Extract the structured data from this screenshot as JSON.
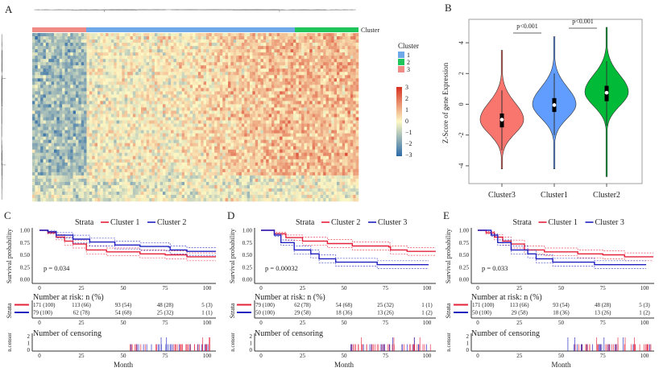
{
  "panels": {
    "A": {
      "label": "A",
      "cluster_track_label": "Cluster",
      "legend_title": "Cluster",
      "legend_items": [
        {
          "label": "1",
          "color": "#6fa8e8"
        },
        {
          "label": "2",
          "color": "#1fc45a"
        },
        {
          "label": "3",
          "color": "#f08a84"
        }
      ],
      "colorbar_ticks": [
        "3",
        "2",
        "1",
        "0",
        "−1",
        "−2",
        "−3"
      ],
      "colorbar_colors": {
        "low": "#2c6aa8",
        "mid": "#fdf8c4",
        "high": "#d7301f"
      },
      "column_order": [
        "3",
        "1",
        "2"
      ]
    },
    "B": {
      "label": "B"
    },
    "C": {
      "label": "C"
    },
    "D": {
      "label": "D"
    },
    "E": {
      "label": "E"
    }
  },
  "chart_data": [
    {
      "panel": "B",
      "type": "violin",
      "ylabel": "Z-Score of gene Expression",
      "ylim": [
        -4.5,
        5
      ],
      "yticks": [
        "-4",
        "-2",
        "0",
        "2",
        "4"
      ],
      "categories": [
        "Cluster3",
        "Cluster1",
        "Cluster2"
      ],
      "colors": [
        "#f8766d",
        "#619cff",
        "#00ba38"
      ],
      "series": [
        {
          "category": "Cluster3",
          "min": -4.2,
          "q1": -1.5,
          "median": -1.0,
          "q3": -0.6,
          "max": 3.5,
          "whisker_low": -3.0,
          "whisker_high": 0.9,
          "mode": -1.0
        },
        {
          "category": "Cluster1",
          "min": -4.2,
          "q1": -0.5,
          "median": -0.05,
          "q3": 0.4,
          "max": 4.4,
          "whisker_low": -2.0,
          "whisker_high": 2.0,
          "mode": 0.0
        },
        {
          "category": "Cluster2",
          "min": -4.7,
          "q1": 0.2,
          "median": 0.75,
          "q3": 1.2,
          "max": 5.0,
          "whisker_low": -1.4,
          "whisker_high": 2.8,
          "mode": 0.8
        }
      ],
      "annotations": [
        {
          "text": "p<0.001",
          "between": [
            "Cluster3",
            "Cluster1"
          ]
        },
        {
          "text": "p<0.001",
          "between": [
            "Cluster1",
            "Cluster2"
          ]
        }
      ]
    },
    {
      "panel": "C",
      "type": "line",
      "legend_title": "Strata",
      "ylabel": "Survival probability",
      "xlabel": "Month",
      "xlim": [
        0,
        105
      ],
      "ylim": [
        0,
        1
      ],
      "xticks": [
        "0",
        "25",
        "50",
        "75",
        "100"
      ],
      "yticks": [
        "0.00",
        "0.25",
        "0.50",
        "0.75",
        "1.00"
      ],
      "pvalue": "p = 0.034",
      "series": [
        {
          "name": "Cluster 1",
          "color": "#e4203a",
          "x": [
            0,
            5,
            10,
            15,
            20,
            28,
            40,
            60,
            75,
            88,
            105
          ],
          "y": [
            1,
            0.95,
            0.86,
            0.78,
            0.72,
            0.6,
            0.56,
            0.52,
            0.5,
            0.46,
            0.45
          ]
        },
        {
          "name": "Cluster 2",
          "color": "#2020c0",
          "x": [
            0,
            5,
            10,
            20,
            30,
            45,
            60,
            77,
            78,
            88,
            105
          ],
          "y": [
            1,
            0.97,
            0.9,
            0.82,
            0.76,
            0.7,
            0.67,
            0.66,
            0.6,
            0.57,
            0.56
          ]
        }
      ],
      "risk_table": {
        "title": "Number at risk: n (%)",
        "ylabel": "Strata",
        "rows": [
          [
            "171 (100)",
            "113 (66)",
            "93 (54)",
            "48 (28)",
            "5 (3)"
          ],
          [
            "79 (100)",
            "62 (78)",
            "54 (68)",
            "25 (32)",
            "1 (1)"
          ]
        ]
      },
      "censor": {
        "title": "Number of censoring",
        "ylabel": "n.censor",
        "yticks": [
          "0",
          "1",
          "2"
        ]
      }
    },
    {
      "panel": "D",
      "type": "line",
      "legend_title": "Strata",
      "ylabel": "Survival probability",
      "xlabel": "Month",
      "xlim": [
        0,
        105
      ],
      "ylim": [
        0,
        1
      ],
      "xticks": [
        "0",
        "25",
        "50",
        "75",
        "100"
      ],
      "yticks": [
        "0.00",
        "0.25",
        "0.50",
        "0.75",
        "1.00"
      ],
      "pvalue": "p = 0.00032",
      "series": [
        {
          "name": "Cluster 2",
          "color": "#e4203a",
          "x": [
            0,
            8,
            15,
            25,
            40,
            55,
            77,
            78,
            88,
            105
          ],
          "y": [
            1,
            0.93,
            0.85,
            0.78,
            0.73,
            0.68,
            0.66,
            0.6,
            0.57,
            0.56
          ]
        },
        {
          "name": "Cluster 3",
          "color": "#2020c0",
          "x": [
            0,
            8,
            12,
            20,
            30,
            35,
            45,
            70,
            101
          ],
          "y": [
            1,
            0.9,
            0.75,
            0.6,
            0.52,
            0.42,
            0.35,
            0.3,
            0.3
          ]
        }
      ],
      "risk_table": {
        "title": "Number at risk: n (%)",
        "ylabel": "Strata",
        "rows": [
          [
            "79 (100)",
            "62 (78)",
            "54 (68)",
            "25 (32)",
            "1 (1)"
          ],
          [
            "50 (100)",
            "29 (58)",
            "18 (36)",
            "13 (26)",
            "1 (2)"
          ]
        ]
      },
      "censor": {
        "title": "Number of censoring",
        "ylabel": "n.censor",
        "yticks": [
          "0",
          "1",
          "2"
        ]
      }
    },
    {
      "panel": "E",
      "type": "line",
      "legend_title": "Strata",
      "ylabel": "Survival probability",
      "xlabel": "Month",
      "xlim": [
        0,
        105
      ],
      "ylim": [
        0,
        1
      ],
      "xticks": [
        "0",
        "25",
        "50",
        "75",
        "100"
      ],
      "yticks": [
        "0.00",
        "0.25",
        "0.50",
        "0.75",
        "1.00"
      ],
      "pvalue": "p = 0.033",
      "series": [
        {
          "name": "Cluster 1",
          "color": "#e4203a",
          "x": [
            0,
            5,
            10,
            15,
            20,
            28,
            40,
            60,
            75,
            88,
            105
          ],
          "y": [
            1,
            0.95,
            0.86,
            0.78,
            0.72,
            0.6,
            0.56,
            0.52,
            0.5,
            0.46,
            0.45
          ]
        },
        {
          "name": "Cluster 3",
          "color": "#2020c0",
          "x": [
            0,
            8,
            12,
            20,
            30,
            35,
            45,
            70,
            101
          ],
          "y": [
            1,
            0.9,
            0.75,
            0.6,
            0.52,
            0.42,
            0.35,
            0.3,
            0.3
          ]
        }
      ],
      "risk_table": {
        "title": "Number at risk: n (%)",
        "ylabel": "Strata",
        "rows": [
          [
            "171 (100)",
            "113 (66)",
            "93 (54)",
            "48 (28)",
            "5 (3)"
          ],
          [
            "50 (100)",
            "29 (58)",
            "18 (36)",
            "13 (26)",
            "1 (2)"
          ]
        ]
      },
      "censor": {
        "title": "Number of censoring",
        "ylabel": "n.censor",
        "yticks": [
          "0",
          "1",
          "2"
        ]
      }
    }
  ]
}
